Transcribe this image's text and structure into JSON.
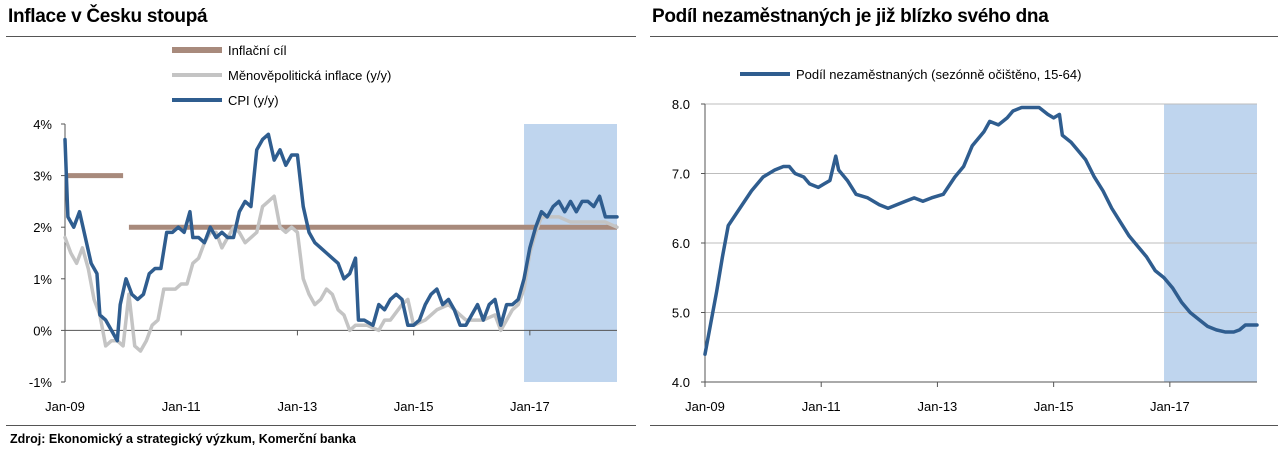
{
  "source": "Zdroj: Ekonomický a strategický výzkum, Komerční banka",
  "chart_data": [
    {
      "type": "line",
      "title": "Inflace v Česku stoupá",
      "ylim": [
        -1,
        4
      ],
      "y_ticks": [
        "-1%",
        "0%",
        "1%",
        "2%",
        "3%",
        "4%"
      ],
      "y_tick_values": [
        -1,
        0,
        1,
        2,
        3,
        4
      ],
      "xlim": [
        2009.0,
        2018.5
      ],
      "x_ticks": [
        "Jan-09",
        "Jan-11",
        "Jan-13",
        "Jan-15",
        "Jan-17"
      ],
      "x_tick_values": [
        2009,
        2011,
        2013,
        2015,
        2017
      ],
      "forecast_region": [
        2016.9,
        2018.5
      ],
      "forecast_color": "#bfd5ee",
      "legend_position": "top",
      "series": [
        {
          "name": "Inflační cíl",
          "color": "#a88a7c",
          "segments": [
            [
              [
                2009.0,
                3
              ],
              [
                2010.0,
                3
              ]
            ],
            [
              [
                2010.1,
                2
              ],
              [
                2018.5,
                2
              ]
            ]
          ]
        },
        {
          "name": "Měnověpolitická inflace (y/y)",
          "color": "#c4c4c4",
          "points": [
            [
              2009.0,
              1.8
            ],
            [
              2009.1,
              1.5
            ],
            [
              2009.2,
              1.3
            ],
            [
              2009.3,
              1.6
            ],
            [
              2009.4,
              1.2
            ],
            [
              2009.5,
              0.6
            ],
            [
              2009.6,
              0.3
            ],
            [
              2009.7,
              -0.3
            ],
            [
              2009.8,
              -0.2
            ],
            [
              2009.9,
              -0.2
            ],
            [
              2010.0,
              -0.3
            ],
            [
              2010.1,
              0.7
            ],
            [
              2010.2,
              -0.3
            ],
            [
              2010.3,
              -0.4
            ],
            [
              2010.4,
              -0.2
            ],
            [
              2010.5,
              0.1
            ],
            [
              2010.6,
              0.2
            ],
            [
              2010.7,
              0.8
            ],
            [
              2010.8,
              0.8
            ],
            [
              2010.9,
              0.8
            ],
            [
              2011.0,
              0.9
            ],
            [
              2011.1,
              0.9
            ],
            [
              2011.2,
              1.3
            ],
            [
              2011.3,
              1.4
            ],
            [
              2011.4,
              1.7
            ],
            [
              2011.5,
              1.9
            ],
            [
              2011.6,
              1.9
            ],
            [
              2011.7,
              1.6
            ],
            [
              2011.8,
              1.8
            ],
            [
              2011.9,
              2.0
            ],
            [
              2012.0,
              1.9
            ],
            [
              2012.1,
              1.7
            ],
            [
              2012.2,
              1.8
            ],
            [
              2012.3,
              1.9
            ],
            [
              2012.4,
              2.4
            ],
            [
              2012.5,
              2.5
            ],
            [
              2012.6,
              2.6
            ],
            [
              2012.7,
              2.0
            ],
            [
              2012.8,
              1.9
            ],
            [
              2012.9,
              2.0
            ],
            [
              2013.0,
              1.9
            ],
            [
              2013.1,
              1.0
            ],
            [
              2013.2,
              0.7
            ],
            [
              2013.3,
              0.5
            ],
            [
              2013.4,
              0.6
            ],
            [
              2013.5,
              0.8
            ],
            [
              2013.6,
              0.7
            ],
            [
              2013.7,
              0.4
            ],
            [
              2013.8,
              0.3
            ],
            [
              2013.9,
              0.0
            ],
            [
              2014.0,
              0.1
            ],
            [
              2014.2,
              0.1
            ],
            [
              2014.4,
              0.0
            ],
            [
              2014.5,
              0.2
            ],
            [
              2014.6,
              0.2
            ],
            [
              2014.8,
              0.5
            ],
            [
              2014.9,
              0.6
            ],
            [
              2015.0,
              0.1
            ],
            [
              2015.2,
              0.2
            ],
            [
              2015.4,
              0.4
            ],
            [
              2015.6,
              0.5
            ],
            [
              2015.8,
              0.3
            ],
            [
              2015.9,
              0.2
            ],
            [
              2016.0,
              0.2
            ],
            [
              2016.2,
              0.2
            ],
            [
              2016.4,
              0.3
            ],
            [
              2016.5,
              0.0
            ],
            [
              2016.7,
              0.4
            ],
            [
              2016.8,
              0.5
            ],
            [
              2016.9,
              0.8
            ],
            [
              2017.0,
              1.5
            ],
            [
              2017.1,
              1.9
            ],
            [
              2017.2,
              2.2
            ],
            [
              2017.3,
              2.2
            ],
            [
              2017.5,
              2.2
            ],
            [
              2017.7,
              2.1
            ],
            [
              2017.9,
              2.1
            ],
            [
              2018.1,
              2.1
            ],
            [
              2018.3,
              2.1
            ],
            [
              2018.5,
              2.0
            ]
          ]
        },
        {
          "name": "CPI (y/y)",
          "color": "#2f5d8f",
          "points": [
            [
              2009.0,
              3.7
            ],
            [
              2009.05,
              2.2
            ],
            [
              2009.15,
              2.0
            ],
            [
              2009.25,
              2.3
            ],
            [
              2009.35,
              1.8
            ],
            [
              2009.45,
              1.3
            ],
            [
              2009.55,
              1.1
            ],
            [
              2009.6,
              0.3
            ],
            [
              2009.7,
              0.2
            ],
            [
              2009.8,
              0.0
            ],
            [
              2009.9,
              -0.2
            ],
            [
              2009.95,
              0.5
            ],
            [
              2010.05,
              1.0
            ],
            [
              2010.15,
              0.7
            ],
            [
              2010.25,
              0.6
            ],
            [
              2010.35,
              0.7
            ],
            [
              2010.45,
              1.1
            ],
            [
              2010.55,
              1.2
            ],
            [
              2010.65,
              1.2
            ],
            [
              2010.75,
              1.9
            ],
            [
              2010.85,
              1.9
            ],
            [
              2010.95,
              2.0
            ],
            [
              2011.05,
              1.9
            ],
            [
              2011.15,
              2.3
            ],
            [
              2011.2,
              1.8
            ],
            [
              2011.3,
              1.8
            ],
            [
              2011.4,
              1.7
            ],
            [
              2011.5,
              2.0
            ],
            [
              2011.6,
              1.8
            ],
            [
              2011.7,
              1.9
            ],
            [
              2011.8,
              1.8
            ],
            [
              2011.9,
              1.8
            ],
            [
              2012.0,
              2.3
            ],
            [
              2012.1,
              2.5
            ],
            [
              2012.2,
              2.4
            ],
            [
              2012.3,
              3.5
            ],
            [
              2012.4,
              3.7
            ],
            [
              2012.5,
              3.8
            ],
            [
              2012.6,
              3.3
            ],
            [
              2012.7,
              3.5
            ],
            [
              2012.8,
              3.2
            ],
            [
              2012.9,
              3.4
            ],
            [
              2013.0,
              3.4
            ],
            [
              2013.1,
              2.4
            ],
            [
              2013.2,
              1.9
            ],
            [
              2013.3,
              1.7
            ],
            [
              2013.4,
              1.6
            ],
            [
              2013.5,
              1.5
            ],
            [
              2013.6,
              1.4
            ],
            [
              2013.7,
              1.3
            ],
            [
              2013.8,
              1.0
            ],
            [
              2013.9,
              1.1
            ],
            [
              2014.0,
              1.4
            ],
            [
              2014.05,
              0.2
            ],
            [
              2014.15,
              0.2
            ],
            [
              2014.3,
              0.1
            ],
            [
              2014.4,
              0.5
            ],
            [
              2014.5,
              0.4
            ],
            [
              2014.6,
              0.6
            ],
            [
              2014.7,
              0.7
            ],
            [
              2014.8,
              0.6
            ],
            [
              2014.9,
              0.1
            ],
            [
              2015.0,
              0.1
            ],
            [
              2015.1,
              0.2
            ],
            [
              2015.2,
              0.5
            ],
            [
              2015.3,
              0.7
            ],
            [
              2015.4,
              0.8
            ],
            [
              2015.5,
              0.5
            ],
            [
              2015.6,
              0.6
            ],
            [
              2015.7,
              0.4
            ],
            [
              2015.8,
              0.1
            ],
            [
              2015.9,
              0.1
            ],
            [
              2016.0,
              0.3
            ],
            [
              2016.1,
              0.5
            ],
            [
              2016.2,
              0.2
            ],
            [
              2016.3,
              0.5
            ],
            [
              2016.4,
              0.6
            ],
            [
              2016.5,
              0.1
            ],
            [
              2016.6,
              0.5
            ],
            [
              2016.7,
              0.5
            ],
            [
              2016.8,
              0.6
            ],
            [
              2016.9,
              1.0
            ],
            [
              2017.0,
              1.6
            ],
            [
              2017.1,
              2.0
            ],
            [
              2017.2,
              2.3
            ],
            [
              2017.3,
              2.2
            ],
            [
              2017.4,
              2.4
            ],
            [
              2017.5,
              2.5
            ],
            [
              2017.6,
              2.3
            ],
            [
              2017.7,
              2.5
            ],
            [
              2017.8,
              2.3
            ],
            [
              2017.9,
              2.5
            ],
            [
              2018.0,
              2.5
            ],
            [
              2018.1,
              2.4
            ],
            [
              2018.2,
              2.6
            ],
            [
              2018.3,
              2.2
            ],
            [
              2018.5,
              2.2
            ]
          ]
        }
      ]
    },
    {
      "type": "line",
      "title": "Podíl nezaměstnaných je již blízko svého dna",
      "ylim": [
        4.0,
        8.0
      ],
      "y_ticks": [
        "4.0",
        "5.0",
        "6.0",
        "7.0",
        "8.0"
      ],
      "y_tick_values": [
        4,
        5,
        6,
        7,
        8
      ],
      "xlim": [
        2009.0,
        2018.5
      ],
      "x_ticks": [
        "Jan-09",
        "Jan-11",
        "Jan-13",
        "Jan-15",
        "Jan-17"
      ],
      "x_tick_values": [
        2009,
        2011,
        2013,
        2015,
        2017
      ],
      "forecast_region": [
        2016.9,
        2018.5
      ],
      "forecast_color": "#bfd5ee",
      "legend_position": "top",
      "series": [
        {
          "name": "Podíl nezaměstnaných (sezónně očištěno, 15-64)",
          "color": "#2f5d8f",
          "points": [
            [
              2009.0,
              4.4
            ],
            [
              2009.1,
              4.85
            ],
            [
              2009.2,
              5.3
            ],
            [
              2009.3,
              5.8
            ],
            [
              2009.4,
              6.25
            ],
            [
              2009.6,
              6.5
            ],
            [
              2009.8,
              6.75
            ],
            [
              2010.0,
              6.95
            ],
            [
              2010.2,
              7.05
            ],
            [
              2010.35,
              7.1
            ],
            [
              2010.45,
              7.1
            ],
            [
              2010.55,
              7.0
            ],
            [
              2010.7,
              6.95
            ],
            [
              2010.8,
              6.85
            ],
            [
              2010.95,
              6.8
            ],
            [
              2011.05,
              6.85
            ],
            [
              2011.15,
              6.9
            ],
            [
              2011.25,
              7.25
            ],
            [
              2011.3,
              7.05
            ],
            [
              2011.45,
              6.9
            ],
            [
              2011.6,
              6.7
            ],
            [
              2011.8,
              6.65
            ],
            [
              2012.0,
              6.55
            ],
            [
              2012.15,
              6.5
            ],
            [
              2012.3,
              6.55
            ],
            [
              2012.45,
              6.6
            ],
            [
              2012.6,
              6.65
            ],
            [
              2012.75,
              6.6
            ],
            [
              2012.9,
              6.65
            ],
            [
              2013.1,
              6.7
            ],
            [
              2013.3,
              6.95
            ],
            [
              2013.45,
              7.1
            ],
            [
              2013.6,
              7.4
            ],
            [
              2013.7,
              7.5
            ],
            [
              2013.8,
              7.6
            ],
            [
              2013.9,
              7.75
            ],
            [
              2014.05,
              7.7
            ],
            [
              2014.2,
              7.8
            ],
            [
              2014.3,
              7.9
            ],
            [
              2014.45,
              7.95
            ],
            [
              2014.6,
              7.95
            ],
            [
              2014.75,
              7.95
            ],
            [
              2014.9,
              7.85
            ],
            [
              2015.0,
              7.8
            ],
            [
              2015.1,
              7.85
            ],
            [
              2015.15,
              7.55
            ],
            [
              2015.3,
              7.45
            ],
            [
              2015.45,
              7.3
            ],
            [
              2015.55,
              7.2
            ],
            [
              2015.7,
              6.95
            ],
            [
              2015.85,
              6.75
            ],
            [
              2016.0,
              6.5
            ],
            [
              2016.15,
              6.3
            ],
            [
              2016.3,
              6.1
            ],
            [
              2016.45,
              5.95
            ],
            [
              2016.6,
              5.8
            ],
            [
              2016.75,
              5.6
            ],
            [
              2016.9,
              5.5
            ],
            [
              2017.05,
              5.35
            ],
            [
              2017.2,
              5.15
            ],
            [
              2017.35,
              5.0
            ],
            [
              2017.5,
              4.9
            ],
            [
              2017.65,
              4.8
            ],
            [
              2017.8,
              4.75
            ],
            [
              2017.95,
              4.72
            ],
            [
              2018.1,
              4.72
            ],
            [
              2018.2,
              4.75
            ],
            [
              2018.3,
              4.82
            ],
            [
              2018.5,
              4.82
            ]
          ]
        }
      ]
    }
  ]
}
